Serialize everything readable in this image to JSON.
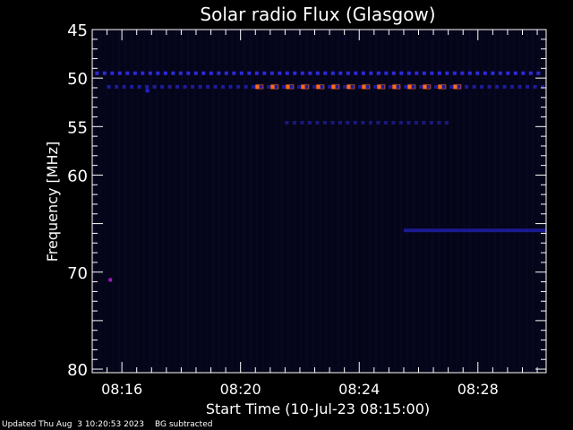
{
  "chart_data": {
    "type": "heatmap",
    "title": "Solar radio Flux (Glasgow)",
    "xlabel": "Start Time (10-Jul-23 08:15:00)",
    "ylabel": "Frequency [MHz]",
    "x_range_minutes_after_0815": [
      0,
      15.3
    ],
    "ylim": [
      45,
      80
    ],
    "y_ticks": [
      45,
      50,
      55,
      60,
      70,
      80
    ],
    "x_ticks": [
      {
        "minute": 1,
        "label": "08:16"
      },
      {
        "minute": 5,
        "label": "08:20"
      },
      {
        "minute": 9,
        "label": "08:24"
      },
      {
        "minute": 13,
        "label": "08:28"
      }
    ],
    "features": [
      {
        "name": "band",
        "freq_mhz": 49.5,
        "start_min": 0.1,
        "end_min": 15.2,
        "intensity": "medium",
        "color": "#2a2ad8",
        "dashed": true
      },
      {
        "name": "band",
        "freq_mhz": 50.9,
        "start_min": 5.5,
        "end_min": 12.5,
        "intensity": "high",
        "color": "#ff6a1a",
        "dashed": true
      },
      {
        "name": "band",
        "freq_mhz": 50.9,
        "start_min": 0.5,
        "end_min": 15.2,
        "intensity": "low",
        "color": "#1c1c9a",
        "dashed": true
      },
      {
        "name": "band",
        "freq_mhz": 54.6,
        "start_min": 6.5,
        "end_min": 12.0,
        "intensity": "low",
        "color": "#18187a",
        "dashed": true
      },
      {
        "name": "band",
        "freq_mhz": 65.7,
        "start_min": 10.5,
        "end_min": 15.3,
        "intensity": "low",
        "color": "#1a1a90",
        "dashed": false
      },
      {
        "name": "blip",
        "freq_mhz": 70.8,
        "start_min": 0.55,
        "end_min": 0.65,
        "intensity": "medium",
        "color": "#9a1ab8",
        "dashed": false
      },
      {
        "name": "blip",
        "freq_mhz": 51.3,
        "start_min": 1.8,
        "end_min": 1.9,
        "intensity": "medium",
        "color": "#2323c8",
        "dashed": false
      }
    ]
  },
  "footer": {
    "updated": "Updated Thu Aug  3 10:20:53 2023",
    "note": "BG subtracted"
  }
}
